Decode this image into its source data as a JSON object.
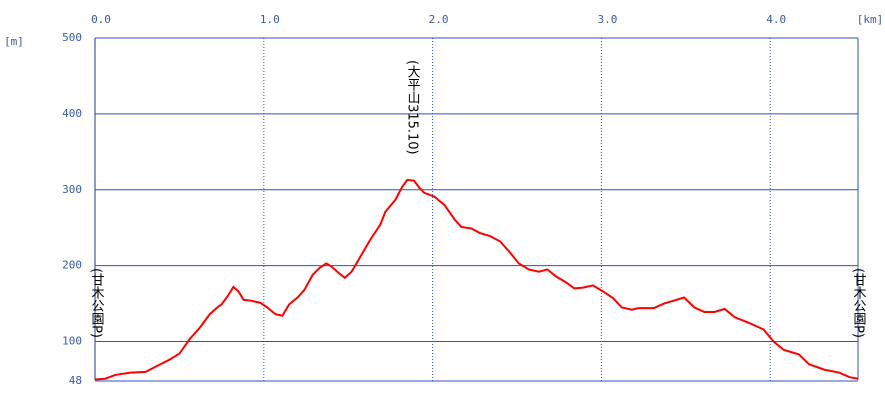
{
  "chart_data": {
    "type": "line",
    "x_unit": "[km]",
    "y_unit": "[m]",
    "annotations": [
      "(大平山315.10)",
      "(甘木公園P)",
      "(甘木公園P)"
    ],
    "x": [
      0,
      0.06,
      0.12,
      0.21,
      0.3,
      0.36,
      0.44,
      0.5,
      0.56,
      0.62,
      0.68,
      0.73,
      0.75,
      0.79,
      0.82,
      0.85,
      0.88,
      0.92,
      0.98,
      1.02,
      1.07,
      1.11,
      1.15,
      1.2,
      1.24,
      1.29,
      1.33,
      1.37,
      1.4,
      1.44,
      1.48,
      1.52,
      1.57,
      1.63,
      1.69,
      1.72,
      1.78,
      1.82,
      1.85,
      1.89,
      1.92,
      1.95,
      2.01,
      2.07,
      2.13,
      2.17,
      2.23,
      2.28,
      2.34,
      2.4,
      2.46,
      2.51,
      2.57,
      2.63,
      2.68,
      2.73,
      2.79,
      2.84,
      2.89,
      2.95,
      3.01,
      3.07,
      3.12,
      3.18,
      3.22,
      3.31,
      3.37,
      3.43,
      3.49,
      3.55,
      3.61,
      3.67,
      3.73,
      3.79,
      3.88,
      3.96,
      4.02,
      4.08,
      4.17,
      4.23,
      4.32,
      4.41,
      4.47,
      4.52
    ],
    "series": [
      {
        "color": "#ff0000",
        "values": [
          50,
          51,
          56,
          59,
          60,
          67,
          76,
          84,
          103,
          118,
          136,
          146,
          149,
          161,
          172,
          166,
          155,
          154,
          151,
          145,
          136,
          134,
          149,
          158,
          168,
          188,
          197,
          203,
          199,
          191,
          184,
          192,
          211,
          234,
          254,
          271,
          287,
          304,
          313,
          312,
          303,
          296,
          291,
          280,
          261,
          251,
          249,
          243,
          239,
          232,
          217,
          203,
          195,
          192,
          195,
          186,
          178,
          170,
          171,
          174,
          166,
          157,
          145,
          142,
          144,
          144,
          150,
          154,
          158,
          145,
          139,
          139,
          143,
          132,
          124,
          116,
          100,
          89,
          83,
          70,
          63,
          59,
          53,
          51
        ]
      }
    ],
    "xlim": [
      0,
      4.52
    ],
    "ylim": [
      48,
      500
    ],
    "xticks": [
      {
        "value": 0,
        "label": "0.0"
      },
      {
        "value": 1,
        "label": "1.0"
      },
      {
        "value": 2,
        "label": "2.0"
      },
      {
        "value": 3,
        "label": "3.0"
      },
      {
        "value": 4,
        "label": "4.0"
      }
    ],
    "yticks": [
      48,
      100,
      200,
      300,
      400,
      500
    ],
    "grid": true
  }
}
